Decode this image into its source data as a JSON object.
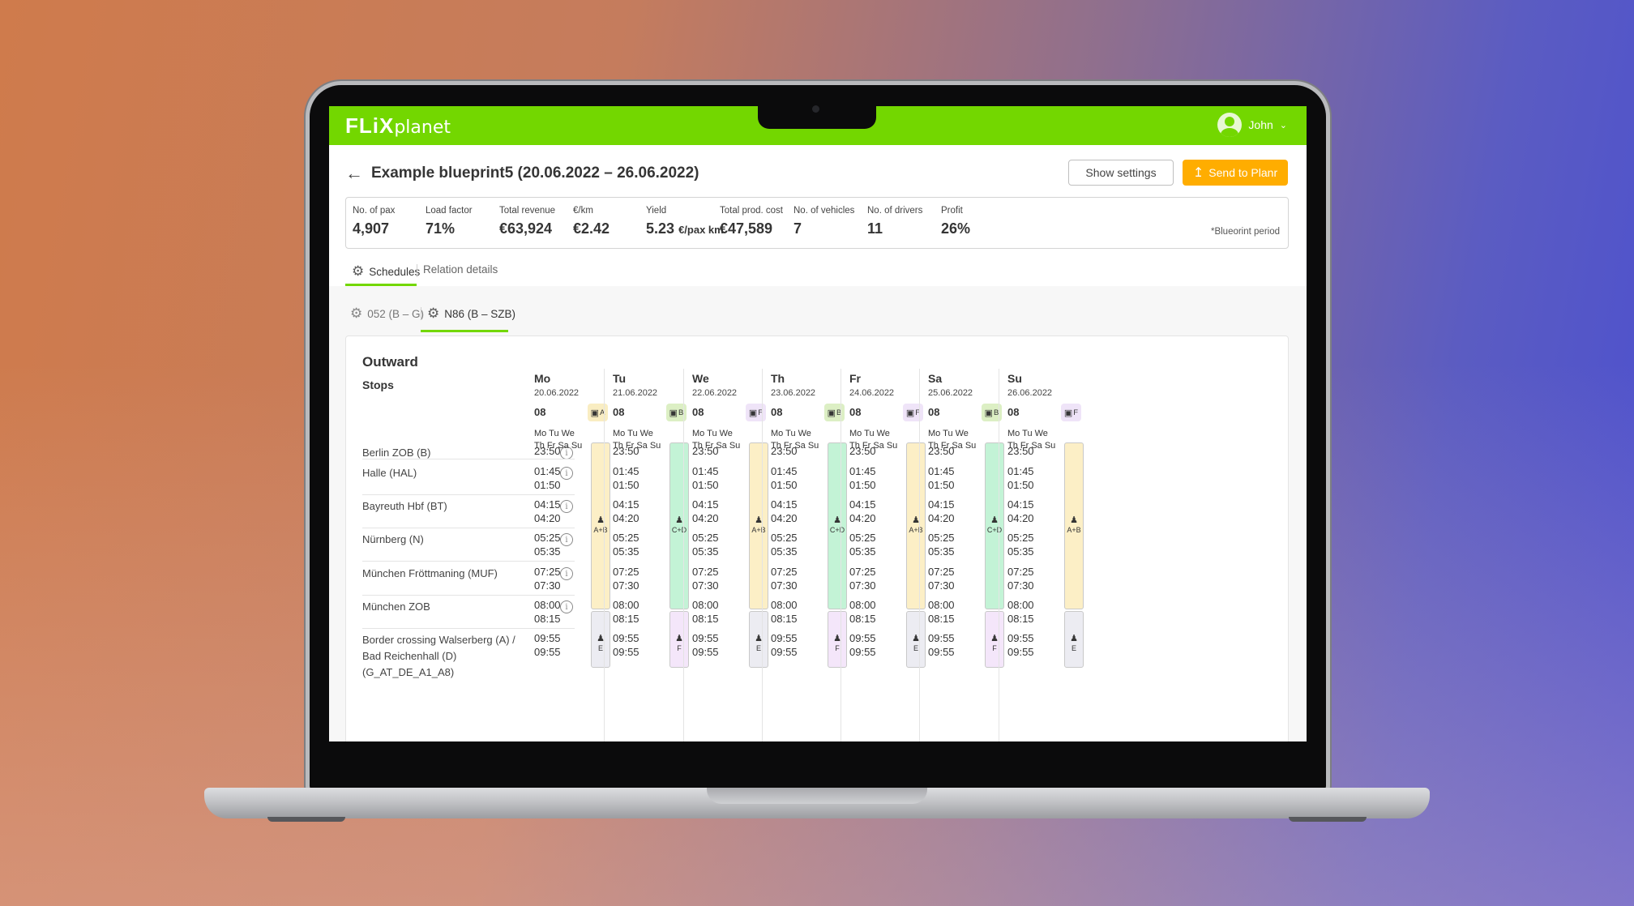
{
  "app": {
    "logo_bold": "FLiX",
    "logo_light": "planet",
    "user_name": "John"
  },
  "header": {
    "back_icon": "←",
    "title": "Example blueprint5 (20.06.2022 – 26.06.2022)",
    "show_settings": "Show settings",
    "send_to_planr": "Send to Planr",
    "send_icon": "↥"
  },
  "kpis": [
    {
      "label": "No. of pax",
      "value": "4,907",
      "unit": ""
    },
    {
      "label": "Load factor",
      "value": "71%",
      "unit": ""
    },
    {
      "label": "Total revenue",
      "value": "€63,924",
      "unit": ""
    },
    {
      "label": "€/km",
      "value": "€2.42",
      "unit": ""
    },
    {
      "label": "Yield",
      "value": "5.23",
      "unit": "€/pax km"
    },
    {
      "label": "Total prod. cost",
      "value": "€47,589",
      "unit": ""
    },
    {
      "label": "No. of vehicles",
      "value": "7",
      "unit": ""
    },
    {
      "label": "No. of drivers",
      "value": "11",
      "unit": ""
    },
    {
      "label": "Profit",
      "value": "26%",
      "unit": ""
    }
  ],
  "kpi_note": "*Blueorint period",
  "tabs": [
    {
      "label": "Schedules",
      "active": true
    },
    {
      "label": "Relation details",
      "active": false
    }
  ],
  "subtabs": [
    {
      "label": "052 (B – G)",
      "active": false
    },
    {
      "label": "N86 (B – SZB)",
      "active": true
    }
  ],
  "schedule": {
    "direction": "Outward",
    "stops_header": "Stops",
    "stops": [
      "Berlin ZOB (B)",
      "Halle (HAL)",
      "Bayreuth Hbf (BT)",
      "Nürnberg (N)",
      "München Fröttmaning (MUF)",
      "München ZOB",
      "Border crossing Walserberg (A) / Bad Reichenhall (D) (G_AT_DE_A1_A8)"
    ],
    "weekdays_line1": "Mo Tu We",
    "weekdays_line2": "Th Fr Sa Su",
    "times": [
      [
        "23:50"
      ],
      [
        "01:45",
        "01:50"
      ],
      [
        "04:15",
        "04:20"
      ],
      [
        "05:25",
        "05:35"
      ],
      [
        "07:25",
        "07:30"
      ],
      [
        "08:00",
        "08:15"
      ],
      [
        "09:55",
        "09:55"
      ]
    ],
    "days": [
      {
        "name": "Mo",
        "date": "20.06.2022",
        "hour": "08",
        "bus": "A",
        "driver1": "A+B",
        "driver2": "E",
        "bus_color": "#f9edc2",
        "bar1_color": "#fcefc6",
        "bar2_color": "#ececf2"
      },
      {
        "name": "Tu",
        "date": "21.06.2022",
        "hour": "08",
        "bus": "B",
        "driver1": "C+D",
        "driver2": "F",
        "bus_color": "#dcefc4",
        "bar1_color": "#c3f3d6",
        "bar2_color": "#f4e6fa"
      },
      {
        "name": "We",
        "date": "22.06.2022",
        "hour": "08",
        "bus": "F",
        "driver1": "A+B",
        "driver2": "E",
        "bus_color": "#efe4f8",
        "bar1_color": "#fcefc6",
        "bar2_color": "#ececf2"
      },
      {
        "name": "Th",
        "date": "23.06.2022",
        "hour": "08",
        "bus": "B",
        "driver1": "C+D",
        "driver2": "F",
        "bus_color": "#dcefc4",
        "bar1_color": "#c3f3d6",
        "bar2_color": "#f4e6fa"
      },
      {
        "name": "Fr",
        "date": "24.06.2022",
        "hour": "08",
        "bus": "F",
        "driver1": "A+B",
        "driver2": "E",
        "bus_color": "#efe4f8",
        "bar1_color": "#fcefc6",
        "bar2_color": "#ececf2"
      },
      {
        "name": "Sa",
        "date": "25.06.2022",
        "hour": "08",
        "bus": "B",
        "driver1": "C+D",
        "driver2": "F",
        "bus_color": "#dcefc4",
        "bar1_color": "#c3f3d6",
        "bar2_color": "#f4e6fa"
      },
      {
        "name": "Su",
        "date": "26.06.2022",
        "hour": "08",
        "bus": "F",
        "driver1": "A+B",
        "driver2": "E",
        "bus_color": "#efe4f8",
        "bar1_color": "#fcefc6",
        "bar2_color": "#ececf2"
      }
    ]
  },
  "colors": {
    "brand_green": "#73d700",
    "accent_orange": "#ffad00"
  },
  "icons": {
    "gear": "gear-icon",
    "bus": "bus-icon",
    "driver": "driver-icon",
    "info": "info-icon",
    "back": "arrow-left-icon",
    "upload": "upload-icon",
    "chevron": "chevron-down-icon"
  }
}
